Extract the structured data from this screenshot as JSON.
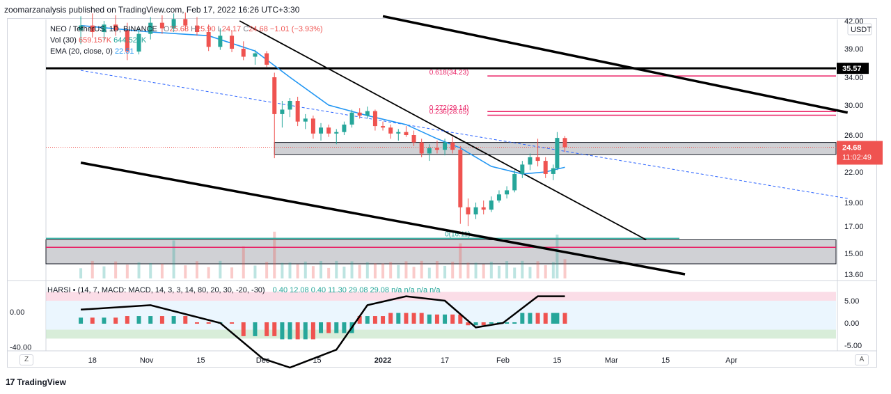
{
  "header": {
    "published": "zoomarzanalysis published on TradingView.com, Feb 17, 2022 16:26 UTC+3:30"
  },
  "legend": {
    "symbol": "NEO / TetherUS, 1D, BINANCE",
    "open_label": "O",
    "open": "25.68",
    "high_label": "H",
    "high": "25.90",
    "low_label": "L",
    "low": "24.17",
    "close_label": "C",
    "close": "24.68",
    "change": "−1.01 (−3.93%)",
    "vol_label": "Vol (30)",
    "vol_value": "659.157K",
    "vol_ma": "644.523K",
    "ema_label": "EMA (20, close, 0)",
    "ema_value": "22.51",
    "harsi_label": "HARSI • (14, 7, MACD: MACD, 14, 3, 3, 14, 80, 20, 30, -20, -30)",
    "harsi_values": "0.40  12.08  0.40  11.30  29.08  29.08  n/a  n/a  n/a  n/a"
  },
  "currency": "USDT",
  "price_axis": {
    "ticks": [
      "42.00",
      "39.00",
      "34.00",
      "30.00",
      "26.00",
      "22.00",
      "19.00",
      "17.00",
      "15.00",
      "13.60"
    ]
  },
  "price_tags": {
    "level": "35.57",
    "last": "24.68",
    "countdown": "11:02:49"
  },
  "fib_labels": {
    "f618": "0.618(34.23)",
    "f272": "0.272(29.14)",
    "f236": "0.236(28.65)",
    "f_low": "0(16.11)"
  },
  "osc_axis": {
    "left_ticks": [
      "0.00",
      "-40.00"
    ],
    "right_ticks": [
      "5.00",
      "0.00",
      "-5.00"
    ]
  },
  "time_axis": {
    "labels": [
      "18",
      "Nov",
      "15",
      "Dec",
      "15",
      "2022",
      "17",
      "Feb",
      "15",
      "Mar",
      "15",
      "Apr"
    ]
  },
  "axis_buttons": {
    "left": "Z",
    "right": "A"
  },
  "footer": {
    "brand": "TradingView"
  },
  "colors": {
    "up": "#26a69a",
    "down": "#ef5350",
    "ema": "#2196f3",
    "fib": "#e91e63",
    "zone": "#787b86"
  },
  "chart_data": {
    "type": "candlestick",
    "symbol": "NEO/USDT",
    "ylim": [
      13.6,
      42
    ],
    "candles": [
      {
        "d": "2021-10-15",
        "o": 41.0,
        "h": 42.5,
        "l": 39.5,
        "c": 41.5
      },
      {
        "d": "2021-10-18",
        "o": 41.5,
        "h": 42.8,
        "l": 40.2,
        "c": 40.8
      },
      {
        "d": "2021-10-21",
        "o": 40.8,
        "h": 42.0,
        "l": 39.8,
        "c": 41.6
      },
      {
        "d": "2021-10-24",
        "o": 41.6,
        "h": 42.6,
        "l": 40.4,
        "c": 41.0
      },
      {
        "d": "2021-10-27",
        "o": 41.0,
        "h": 41.8,
        "l": 37.0,
        "c": 38.5
      },
      {
        "d": "2021-10-30",
        "o": 38.5,
        "h": 41.2,
        "l": 38.0,
        "c": 40.6
      },
      {
        "d": "2021-11-02",
        "o": 40.6,
        "h": 42.4,
        "l": 40.0,
        "c": 41.8
      },
      {
        "d": "2021-11-05",
        "o": 41.8,
        "h": 42.6,
        "l": 40.6,
        "c": 41.2
      },
      {
        "d": "2021-11-08",
        "o": 41.2,
        "h": 42.8,
        "l": 40.8,
        "c": 42.2
      },
      {
        "d": "2021-11-11",
        "o": 42.2,
        "h": 42.9,
        "l": 41.0,
        "c": 41.5
      },
      {
        "d": "2021-11-14",
        "o": 41.5,
        "h": 42.4,
        "l": 40.4,
        "c": 40.8
      },
      {
        "d": "2021-11-17",
        "o": 40.8,
        "h": 41.6,
        "l": 38.6,
        "c": 39.2
      },
      {
        "d": "2021-11-20",
        "o": 39.2,
        "h": 41.2,
        "l": 38.8,
        "c": 40.4
      },
      {
        "d": "2021-11-23",
        "o": 40.4,
        "h": 41.0,
        "l": 38.4,
        "c": 39.0
      },
      {
        "d": "2021-11-26",
        "o": 39.0,
        "h": 39.8,
        "l": 37.0,
        "c": 37.6
      },
      {
        "d": "2021-11-29",
        "o": 37.6,
        "h": 38.8,
        "l": 36.2,
        "c": 38.2
      },
      {
        "d": "2021-12-02",
        "o": 38.2,
        "h": 38.6,
        "l": 35.8,
        "c": 36.2
      },
      {
        "d": "2021-12-04",
        "o": 34.0,
        "h": 34.8,
        "l": 23.5,
        "c": 28.8
      },
      {
        "d": "2021-12-06",
        "o": 28.8,
        "h": 30.6,
        "l": 27.0,
        "c": 29.4
      },
      {
        "d": "2021-12-08",
        "o": 29.4,
        "h": 31.0,
        "l": 28.4,
        "c": 30.6
      },
      {
        "d": "2021-12-10",
        "o": 30.6,
        "h": 31.2,
        "l": 27.2,
        "c": 27.8
      },
      {
        "d": "2021-12-12",
        "o": 27.8,
        "h": 28.8,
        "l": 26.8,
        "c": 28.2
      },
      {
        "d": "2021-12-14",
        "o": 28.2,
        "h": 28.6,
        "l": 25.6,
        "c": 26.2
      },
      {
        "d": "2021-12-16",
        "o": 26.2,
        "h": 27.6,
        "l": 25.4,
        "c": 27.0
      },
      {
        "d": "2021-12-18",
        "o": 27.0,
        "h": 27.4,
        "l": 25.8,
        "c": 26.2
      },
      {
        "d": "2021-12-20",
        "o": 26.2,
        "h": 26.8,
        "l": 25.0,
        "c": 26.4
      },
      {
        "d": "2021-12-22",
        "o": 26.4,
        "h": 27.8,
        "l": 26.0,
        "c": 27.4
      },
      {
        "d": "2021-12-24",
        "o": 27.4,
        "h": 29.4,
        "l": 27.0,
        "c": 29.0
      },
      {
        "d": "2021-12-26",
        "o": 29.0,
        "h": 29.6,
        "l": 28.2,
        "c": 28.6
      },
      {
        "d": "2021-12-28",
        "o": 28.6,
        "h": 29.8,
        "l": 28.2,
        "c": 29.2
      },
      {
        "d": "2021-12-30",
        "o": 29.2,
        "h": 29.4,
        "l": 26.6,
        "c": 27.2
      },
      {
        "d": "2022-01-01",
        "o": 27.2,
        "h": 27.8,
        "l": 26.6,
        "c": 27.0
      },
      {
        "d": "2022-01-03",
        "o": 27.0,
        "h": 27.4,
        "l": 25.6,
        "c": 26.2
      },
      {
        "d": "2022-01-05",
        "o": 26.2,
        "h": 26.8,
        "l": 25.4,
        "c": 26.4
      },
      {
        "d": "2022-01-07",
        "o": 26.4,
        "h": 27.2,
        "l": 25.8,
        "c": 26.0
      },
      {
        "d": "2022-01-09",
        "o": 26.0,
        "h": 26.6,
        "l": 24.8,
        "c": 25.2
      },
      {
        "d": "2022-01-11",
        "o": 25.2,
        "h": 25.6,
        "l": 23.6,
        "c": 24.0
      },
      {
        "d": "2022-01-13",
        "o": 24.0,
        "h": 25.0,
        "l": 23.2,
        "c": 24.6
      },
      {
        "d": "2022-01-15",
        "o": 24.6,
        "h": 25.4,
        "l": 24.0,
        "c": 24.4
      },
      {
        "d": "2022-01-17",
        "o": 24.4,
        "h": 25.6,
        "l": 23.8,
        "c": 25.2
      },
      {
        "d": "2022-01-19",
        "o": 25.2,
        "h": 25.8,
        "l": 24.0,
        "c": 24.4
      },
      {
        "d": "2022-01-21",
        "o": 24.4,
        "h": 24.8,
        "l": 17.2,
        "c": 18.6
      },
      {
        "d": "2022-01-23",
        "o": 18.6,
        "h": 19.4,
        "l": 17.0,
        "c": 18.0
      },
      {
        "d": "2022-01-25",
        "o": 18.0,
        "h": 19.0,
        "l": 17.6,
        "c": 18.6
      },
      {
        "d": "2022-01-27",
        "o": 18.6,
        "h": 19.2,
        "l": 18.0,
        "c": 18.4
      },
      {
        "d": "2022-01-29",
        "o": 18.4,
        "h": 19.6,
        "l": 18.2,
        "c": 19.2
      },
      {
        "d": "2022-01-31",
        "o": 19.2,
        "h": 20.2,
        "l": 19.0,
        "c": 19.8
      },
      {
        "d": "2022-02-02",
        "o": 19.8,
        "h": 20.6,
        "l": 19.4,
        "c": 20.2
      },
      {
        "d": "2022-02-04",
        "o": 20.2,
        "h": 22.2,
        "l": 20.0,
        "c": 21.8
      },
      {
        "d": "2022-02-06",
        "o": 21.8,
        "h": 23.2,
        "l": 21.4,
        "c": 22.8
      },
      {
        "d": "2022-02-08",
        "o": 22.8,
        "h": 24.0,
        "l": 22.2,
        "c": 23.6
      },
      {
        "d": "2022-02-10",
        "o": 23.6,
        "h": 25.6,
        "l": 22.6,
        "c": 23.2
      },
      {
        "d": "2022-02-12",
        "o": 23.2,
        "h": 23.6,
        "l": 21.4,
        "c": 21.8
      },
      {
        "d": "2022-02-14",
        "o": 21.8,
        "h": 22.8,
        "l": 21.2,
        "c": 22.4
      },
      {
        "d": "2022-02-15",
        "o": 22.4,
        "h": 26.4,
        "l": 22.2,
        "c": 25.69
      },
      {
        "d": "2022-02-17",
        "o": 25.68,
        "h": 25.9,
        "l": 24.17,
        "c": 24.68
      }
    ],
    "ema": [
      {
        "d": "2021-10-15",
        "v": 41.5
      },
      {
        "d": "2021-11-02",
        "v": 40.8
      },
      {
        "d": "2021-11-17",
        "v": 40.4
      },
      {
        "d": "2021-11-29",
        "v": 38.6
      },
      {
        "d": "2021-12-08",
        "v": 34.0
      },
      {
        "d": "2021-12-18",
        "v": 30.0
      },
      {
        "d": "2021-12-28",
        "v": 28.6
      },
      {
        "d": "2022-01-07",
        "v": 27.4
      },
      {
        "d": "2022-01-15",
        "v": 25.6
      },
      {
        "d": "2022-01-21",
        "v": 24.6
      },
      {
        "d": "2022-01-29",
        "v": 22.6
      },
      {
        "d": "2022-02-06",
        "v": 21.8
      },
      {
        "d": "2022-02-12",
        "v": 22.0
      },
      {
        "d": "2022-02-17",
        "v": 22.51
      }
    ],
    "volume": [
      {
        "d": "2021-12-04",
        "v": 1.6
      },
      {
        "d": "2021-11-26",
        "v": 1.1
      },
      {
        "d": "2021-11-08",
        "v": 1.3
      },
      {
        "d": "2022-01-21",
        "v": 1.2
      },
      {
        "d": "2022-02-15",
        "v": 1.5
      },
      {
        "d": "2022-02-17",
        "v": 0.66
      }
    ],
    "levels": {
      "horizontal": 35.57,
      "fib_0618": 34.23,
      "fib_0272": 29.14,
      "fib_0236": 28.65,
      "fib_0": 16.11
    },
    "zones": [
      {
        "from": 23.9,
        "to": 25.2
      },
      {
        "from": 14.3,
        "to": 16.0
      }
    ],
    "trendlines": [
      {
        "from": {
          "d": "2021-11-25",
          "v": 42.0
        },
        "to": {
          "d": "2022-03-10",
          "v": 16.0
        },
        "style": "solid"
      },
      {
        "from": {
          "d": "2022-01-01",
          "v": 42.5
        },
        "to": {
          "d": "2022-05-01",
          "v": 29.0
        },
        "style": "solid-bold"
      },
      {
        "from": {
          "d": "2021-10-15",
          "v": 23.0
        },
        "to": {
          "d": "2022-03-20",
          "v": 13.6
        },
        "style": "solid-bold"
      },
      {
        "from": {
          "d": "2021-10-15",
          "v": 35.2
        },
        "to": {
          "d": "2022-05-01",
          "v": 19.4
        },
        "style": "dashed"
      }
    ],
    "harsi": {
      "line": [
        {
          "d": "2021-10-15",
          "v": 3
        },
        {
          "d": "2021-11-02",
          "v": 4
        },
        {
          "d": "2021-11-20",
          "v": 0
        },
        {
          "d": "2021-12-01",
          "v": -8
        },
        {
          "d": "2021-12-08",
          "v": -10
        },
        {
          "d": "2021-12-20",
          "v": -6
        },
        {
          "d": "2021-12-28",
          "v": 4
        },
        {
          "d": "2022-01-07",
          "v": 6
        },
        {
          "d": "2022-01-17",
          "v": 5
        },
        {
          "d": "2022-01-25",
          "v": -1
        },
        {
          "d": "2022-02-01",
          "v": 0
        },
        {
          "d": "2022-02-10",
          "v": 6
        },
        {
          "d": "2022-02-17",
          "v": 6
        }
      ],
      "right_ylim": [
        -7,
        7
      ]
    }
  }
}
